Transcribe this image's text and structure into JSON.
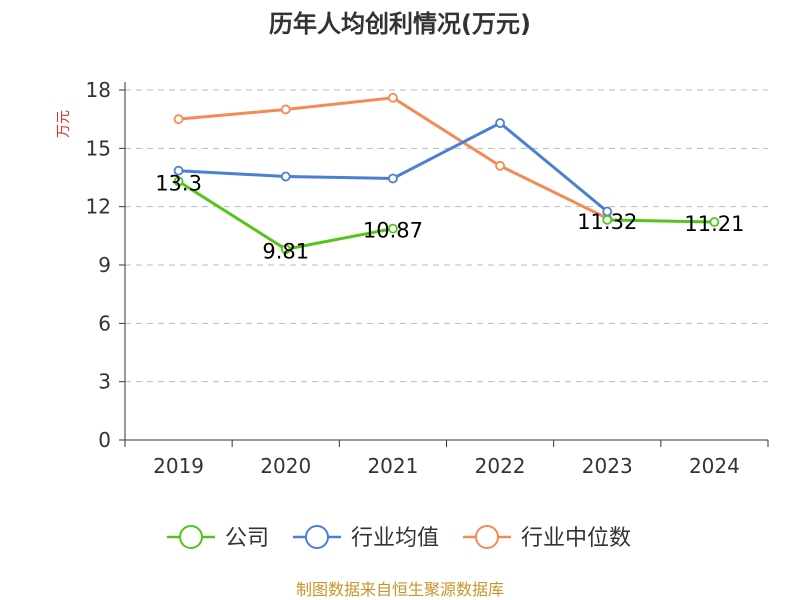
{
  "chart_data": {
    "type": "line",
    "title": "历年人均创利情况(万元)",
    "ylabel": "万元",
    "categories": [
      "2019",
      "2020",
      "2021",
      "2022",
      "2023",
      "2024"
    ],
    "ylim": [
      0,
      18
    ],
    "yticks": [
      0,
      3,
      6,
      9,
      12,
      15,
      18
    ],
    "grid": true,
    "legend_position": "bottom",
    "series": [
      {
        "name": "公司",
        "color": "#52c41a",
        "values": [
          13.3,
          9.81,
          10.87,
          null,
          11.32,
          11.21
        ],
        "labels": [
          "13.3",
          "9.81",
          "10.87",
          "",
          "11.32",
          "11.21"
        ]
      },
      {
        "name": "行业均值",
        "color": "#4a7fd6",
        "values": [
          13.85,
          13.55,
          13.45,
          16.3,
          11.75,
          null
        ]
      },
      {
        "name": "行业中位数",
        "color": "#f58a54",
        "values": [
          16.5,
          17.0,
          17.6,
          14.1,
          11.4,
          null
        ]
      }
    ]
  },
  "source": "制图数据来自恒生聚源数据库",
  "colors": {
    "axis": "#333333",
    "grid": "#bbbbbb",
    "unit": "#e0322b",
    "source": "#c8952c"
  }
}
